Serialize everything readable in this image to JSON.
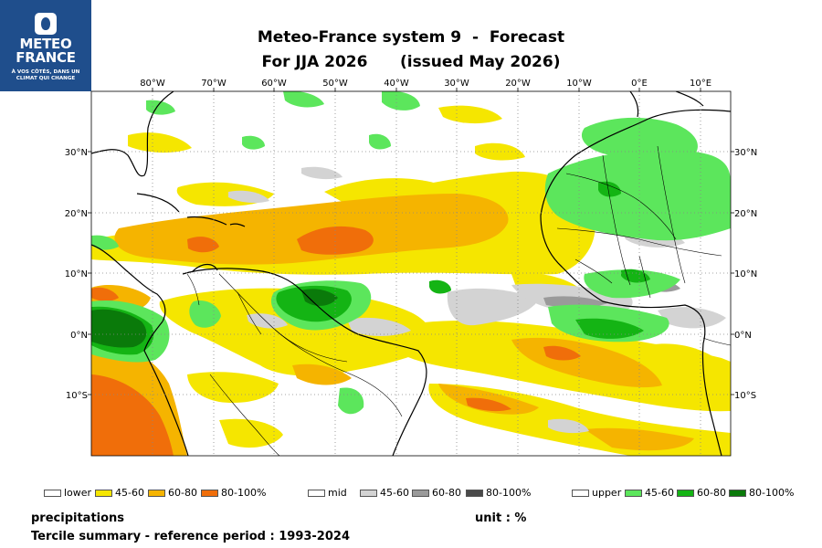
{
  "logo": {
    "line1": "METEO",
    "line2": "FRANCE",
    "tagline1": "À VOS CÔTÉS, DANS UN",
    "tagline2": "CLIMAT QUI CHANGE"
  },
  "title": {
    "line1": "Meteo-France system 9  -  Forecast",
    "line2": "For JJA 2026      (issued May 2026)"
  },
  "map": {
    "lon_labels": [
      "80°W",
      "70°W",
      "60°W",
      "50°W",
      "40°W",
      "30°W",
      "20°W",
      "10°W",
      "0°E",
      "10°E"
    ],
    "lat_labels": [
      "30°N",
      "20°N",
      "10°N",
      "0°N",
      "10°S"
    ],
    "extent": {
      "lon": [
        -90,
        15
      ],
      "lat": [
        -20,
        40
      ]
    }
  },
  "legend": {
    "lower": {
      "label": "lower",
      "items": [
        {
          "label": "45-60",
          "color": "#f5e600"
        },
        {
          "label": "60-80",
          "color": "#f5b400"
        },
        {
          "label": "80-100%",
          "color": "#f06e0a"
        }
      ]
    },
    "mid": {
      "label": "mid",
      "items": [
        {
          "label": "45-60",
          "color": "#d3d3d3"
        },
        {
          "label": "60-80",
          "color": "#9a9a9a"
        },
        {
          "label": "80-100%",
          "color": "#4a4a4a"
        }
      ]
    },
    "upper": {
      "label": "upper",
      "items": [
        {
          "label": "45-60",
          "color": "#5ce65c"
        },
        {
          "label": "60-80",
          "color": "#14b414"
        },
        {
          "label": "80-100%",
          "color": "#0a7a0a"
        }
      ]
    }
  },
  "footer": {
    "variable": "precipitations",
    "summary": "Tercile summary - reference period : 1993-2024",
    "unit": "unit : %"
  }
}
